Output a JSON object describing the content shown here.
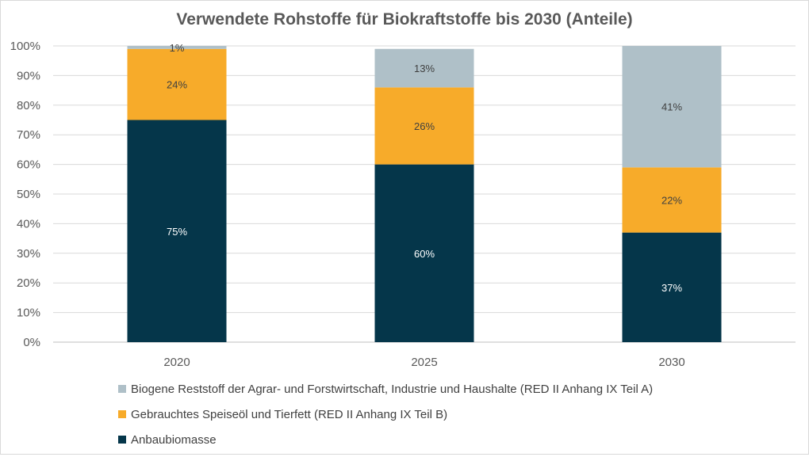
{
  "chart_data": {
    "type": "bar",
    "stacked": true,
    "title": "Verwendete Rohstoffe für Biokraftstoffe bis 2030 (Anteile)",
    "xlabel": "",
    "ylabel": "",
    "ylim": [
      0,
      100
    ],
    "yticks": [
      "0%",
      "10%",
      "20%",
      "30%",
      "40%",
      "50%",
      "60%",
      "70%",
      "80%",
      "90%",
      "100%"
    ],
    "categories": [
      "2020",
      "2025",
      "2030"
    ],
    "grid": true,
    "legend_position": "bottom-left",
    "series": [
      {
        "name": "Anbaubiomasse",
        "color": "#05364a",
        "label_color": "#ffffff",
        "values": [
          75,
          60,
          37
        ],
        "labels": [
          "75%",
          "60%",
          "37%"
        ]
      },
      {
        "name": "Gebrauchtes Speiseöl und Tierfett (RED II Anhang IX Teil B)",
        "color": "#f7ab2a",
        "label_color": "#404040",
        "values": [
          24,
          26,
          22
        ],
        "labels": [
          "24%",
          "26%",
          "22%"
        ]
      },
      {
        "name": "Biogene Reststoff der Agrar- und Forstwirtschaft, Industrie und Haushalte (RED II Anhang IX Teil A)",
        "color": "#afc0c8",
        "label_color": "#404040",
        "values": [
          1,
          13,
          41
        ],
        "labels": [
          "1%",
          "13%",
          "41%"
        ]
      }
    ]
  }
}
